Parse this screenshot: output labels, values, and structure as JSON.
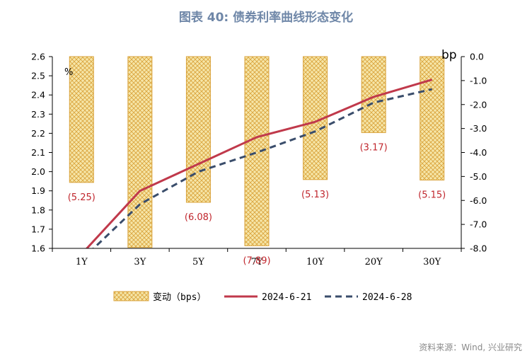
{
  "title": "图表 40: 债券利率曲线形态变化",
  "source": "资料来源：Wind, 兴业研究",
  "colors": {
    "title": "#6f87a8",
    "bar_fill": "#f3df99",
    "bar_stroke": "#d9a23a",
    "series1": "#c0394b",
    "series2": "#3a4d6b",
    "label": "#c0262d"
  },
  "chart_data": {
    "type": "bar+line",
    "categories": [
      "1Y",
      "3Y",
      "5Y",
      "7Y",
      "10Y",
      "20Y",
      "30Y"
    ],
    "left_axis": {
      "unit": "%",
      "range": [
        1.6,
        2.6
      ],
      "ticks": [
        "1.6",
        "1.7",
        "1.8",
        "1.9",
        "2.0",
        "2.1",
        "2.2",
        "2.3",
        "2.4",
        "2.5",
        "2.6"
      ]
    },
    "right_axis": {
      "unit": "bp",
      "range": [
        -8.0,
        0.0
      ],
      "ticks": [
        "-8.0",
        "-7.0",
        "-6.0",
        "-5.0",
        "-4.0",
        "-3.0",
        "-2.0",
        "-1.0",
        "0.0"
      ]
    },
    "bars": {
      "name": "变动（bps）",
      "axis": "right",
      "values": [
        -5.25,
        -7.96,
        -6.08,
        -7.89,
        -5.13,
        -3.17,
        -5.15
      ],
      "labels": [
        "(5.25)",
        "",
        "(6.08)",
        "(7.89)",
        "(5.13)",
        "(3.17)",
        "(5.15)"
      ]
    },
    "series": [
      {
        "name": "2024-6-21",
        "style": "solid",
        "values": [
          1.57,
          1.9,
          2.04,
          2.18,
          2.26,
          2.39,
          2.48
        ]
      },
      {
        "name": "2024-6-28",
        "style": "dashed",
        "values": [
          1.54,
          1.83,
          2.0,
          2.1,
          2.21,
          2.36,
          2.43
        ]
      }
    ],
    "legend_position": "bottom",
    "grid": false
  }
}
